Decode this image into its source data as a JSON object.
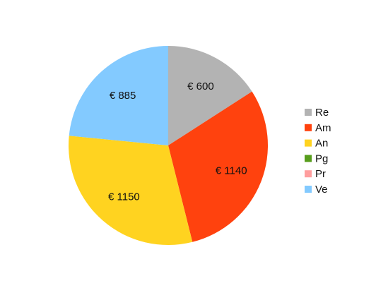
{
  "chart_data": {
    "type": "pie",
    "currency_prefix": "€ ",
    "slices": [
      {
        "name": "Re",
        "value": 600,
        "label": "€ 600",
        "color": "#B3B3B3"
      },
      {
        "name": "Am",
        "value": 1140,
        "label": "€ 1140",
        "color": "#FF420E"
      },
      {
        "name": "An",
        "value": 1150,
        "label": "€ 1150",
        "color": "#FFD320"
      },
      {
        "name": "Pg",
        "value": 0,
        "label": "",
        "color": "#579D1C"
      },
      {
        "name": "Pr",
        "value": 0,
        "label": "",
        "color": "#FF9E9E"
      },
      {
        "name": "Ve",
        "value": 885,
        "label": "€ 885",
        "color": "#83CAFF"
      }
    ],
    "start_angle_deg": 0,
    "direction": "clockwise",
    "legend_position": "right",
    "title": ""
  }
}
